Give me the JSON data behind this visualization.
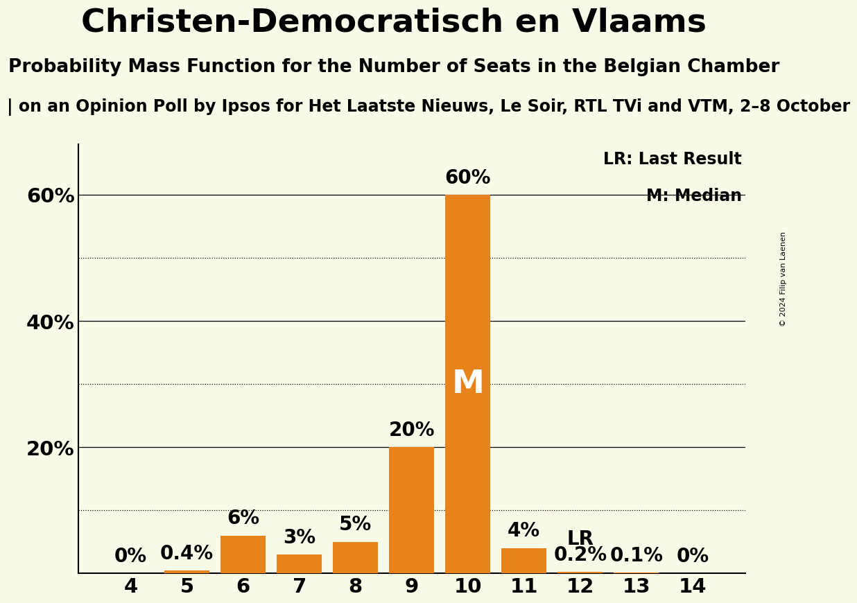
{
  "title": "Christen-Democratisch en Vlaams",
  "subtitle": "Probability Mass Function for the Number of Seats in the Belgian Chamber",
  "source_line": "| on an Opinion Poll by Ipsos for Het Laatste Nieuws, Le Soir, RTL TVi and VTM, 2–8 October",
  "copyright": "© 2024 Filip van Laenen",
  "seats": [
    4,
    5,
    6,
    7,
    8,
    9,
    10,
    11,
    12,
    13,
    14
  ],
  "probabilities": [
    0.0,
    0.4,
    6.0,
    3.0,
    5.0,
    20.0,
    60.0,
    4.0,
    0.2,
    0.1,
    0.0
  ],
  "bar_labels": [
    "0%",
    "0.4%",
    "6%",
    "3%",
    "5%",
    "20%",
    "60%",
    "4%",
    "0.2%",
    "0.1%",
    "0%"
  ],
  "bar_color": "#E8821A",
  "background_color": "#FAFAE8",
  "median_seat": 10,
  "lr_seat": 12,
  "ylim": [
    0,
    68
  ],
  "yticks": [
    20,
    40,
    60
  ],
  "dotted_yticks": [
    10,
    30,
    50
  ],
  "title_fontsize": 34,
  "subtitle_fontsize": 19,
  "source_fontsize": 17,
  "axis_fontsize": 21,
  "bar_label_fontsize": 20,
  "legend_fontsize": 17,
  "median_fontsize": 34,
  "copyright_fontsize": 8
}
